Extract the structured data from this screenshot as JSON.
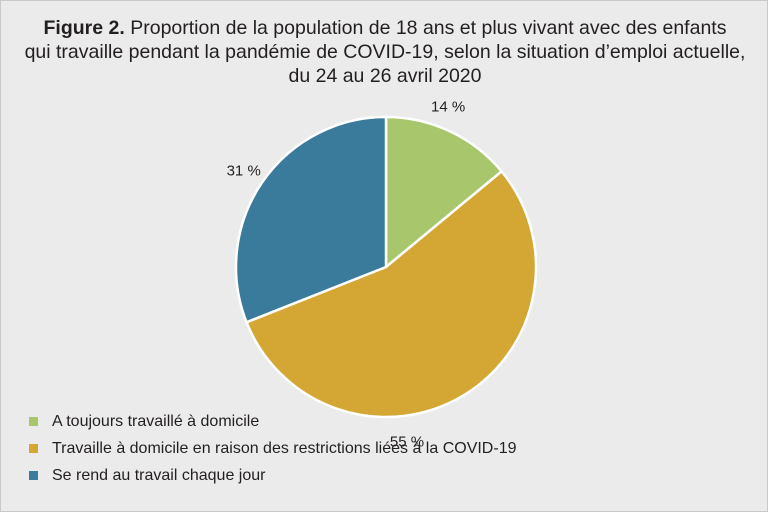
{
  "chart_data": {
    "type": "pie",
    "title_prefix": "Figure 2.",
    "title_lines": [
      "Proportion de la population de 18 ans et plus vivant avec des enfants",
      "qui travaille pendant la pandémie de COVID-19, selon la situation d’emploi actuelle,",
      "du 24 au 26 avril 2020"
    ],
    "slices": [
      {
        "label": "A toujours travaillé à domicile",
        "value": 14,
        "value_label": "14 %",
        "color": "#a8c66c"
      },
      {
        "label": "Travaille à domicile en raison des restrictions liées à la COVID-19",
        "value": 55,
        "value_label": "55 %",
        "color": "#d4a735"
      },
      {
        "label": "Se rend au travail chaque jour",
        "value": 31,
        "value_label": "31 %",
        "color": "#3a7a9b"
      }
    ],
    "legend_position": "bottom-left"
  }
}
